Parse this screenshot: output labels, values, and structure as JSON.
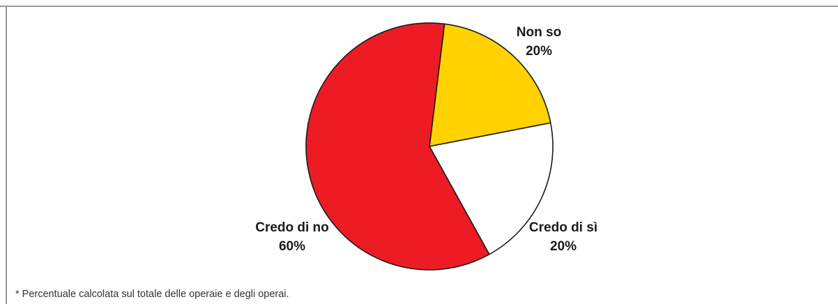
{
  "chart_data": {
    "type": "pie",
    "title": "",
    "slices": [
      {
        "label": "Non so",
        "value": 20,
        "value_label": "20%",
        "color": "#FFD200"
      },
      {
        "label": "Credo di sì",
        "value": 20,
        "value_label": "20%",
        "color": "#FFFFFF"
      },
      {
        "label": "Credo di no",
        "value": 60,
        "value_label": "60%",
        "color": "#ED1C24"
      }
    ],
    "start_angle_deg": 7,
    "direction": "clockwise",
    "stroke_color": "#1A1A1A"
  },
  "footnote": "* Percentuale calcolata sul totale delle operaie e degli operai.",
  "frame_color": "#9B9B9B"
}
